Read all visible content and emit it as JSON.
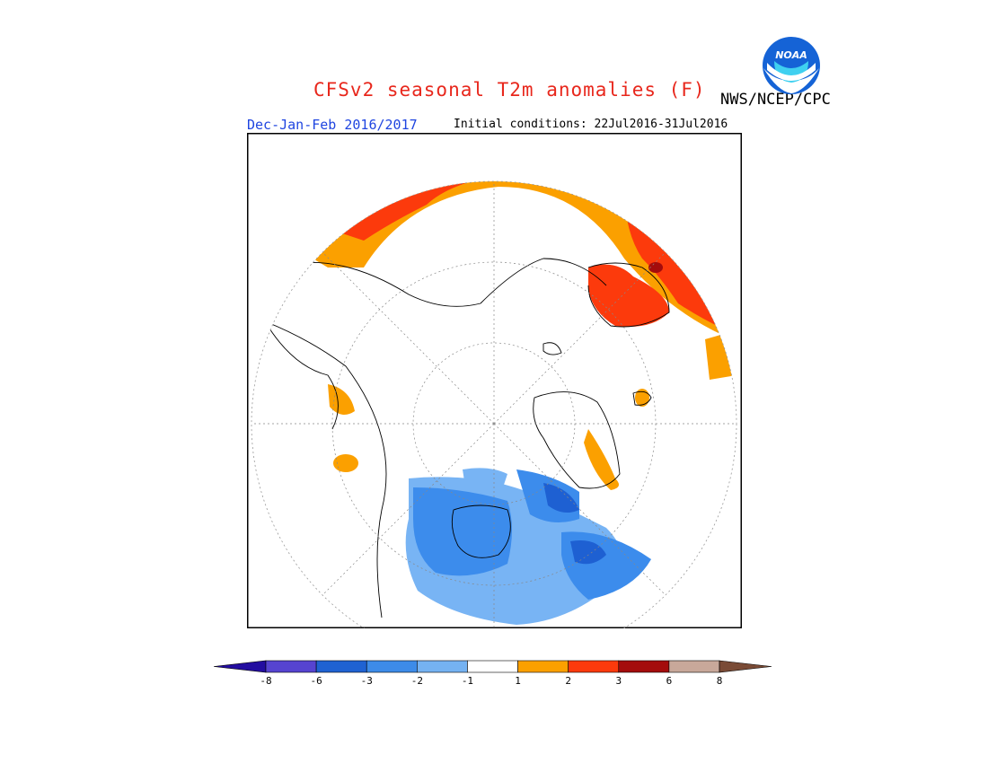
{
  "title": "CFSv2 seasonal T2m anomalies (F)",
  "season": "Dec-Jan-Feb 2016/2017",
  "initial_conditions": "Initial conditions: 22Jul2016-31Jul2016",
  "agency": "NWS/NCEP/CPC",
  "logo": {
    "icon": "noaa-logo",
    "text": "NOAA"
  },
  "colors": {
    "title": "#e8271c",
    "season": "#1f45e0",
    "ocean_land_neutral": "#ffffff",
    "warm_1": "#fba000",
    "warm_2": "#fc3a0c",
    "warm_3": "#a40c0c",
    "cold_1": "#78b4f4",
    "cold_2": "#3c8cec",
    "cold_3": "#1e60d2"
  },
  "colorbar": {
    "bins": [
      {
        "color": "#230da0"
      },
      {
        "color": "#5644d0"
      },
      {
        "color": "#1f62d2"
      },
      {
        "color": "#3d8be8"
      },
      {
        "color": "#75b2f2"
      },
      {
        "color": "#ffffff"
      },
      {
        "color": "#fba000"
      },
      {
        "color": "#fc3a0c"
      },
      {
        "color": "#a40c0c"
      },
      {
        "color": "#c8a89a"
      },
      {
        "color": "#7a4b36"
      }
    ],
    "ticks": [
      "-8",
      "-6",
      "-3",
      "-2",
      "-1",
      "1",
      "2",
      "3",
      "6",
      "8"
    ]
  }
}
